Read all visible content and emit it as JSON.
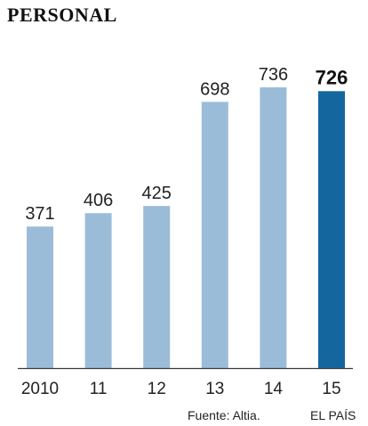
{
  "chart_data": {
    "type": "bar",
    "title": "PERSONAL",
    "categories": [
      "2010",
      "11",
      "12",
      "13",
      "14",
      "15"
    ],
    "values": [
      371,
      406,
      425,
      698,
      736,
      726
    ],
    "highlight_index": 5,
    "ylim": [
      0,
      736
    ],
    "grid": false,
    "colors": {
      "bar": "#9bbcd9",
      "highlight": "#14679e",
      "axis": "#3c3c3c"
    }
  },
  "footer": {
    "source": "Fuente: Altia.",
    "credit": "EL PAÍS"
  }
}
